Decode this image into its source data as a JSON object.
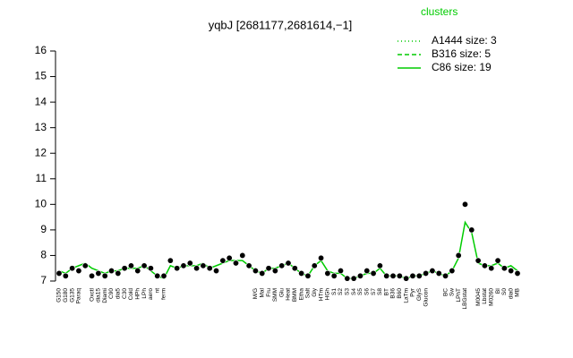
{
  "chart_data": {
    "type": "line",
    "title": "yqbJ [2681177,2681614,−1]",
    "categories": [
      "G150",
      "G180",
      "G135",
      "Paraq",
      null,
      "Oxctl",
      "dia15",
      "Diami",
      "C90",
      "dia5",
      "C30",
      "Cold",
      "HPh",
      "LPh",
      "aero",
      "nt",
      "ferm",
      null,
      null,
      null,
      null,
      null,
      null,
      null,
      null,
      null,
      null,
      null,
      null,
      null,
      "M/G",
      "Mal",
      "Fru",
      "SMM",
      "Glu",
      "Heat",
      "BMM",
      "Etha",
      "Salt",
      "Gly",
      "HTm",
      "HGh",
      "S1",
      "S2",
      "S3",
      "S4",
      "S5",
      "S6",
      "S7",
      "S8",
      "BT",
      "B36",
      "B60",
      "LaTm",
      "Pyr",
      "GlyS",
      "Glucon",
      null,
      null,
      "BC",
      "Sw",
      "LPhT",
      "LBGstat",
      null,
      "M0045",
      "Lbstat",
      "M0260",
      "BI",
      "S0",
      "dia0",
      "MB"
    ],
    "values": [
      7.3,
      7.2,
      7.5,
      7.4,
      7.6,
      7.2,
      7.3,
      7.2,
      7.4,
      7.3,
      7.5,
      7.6,
      7.4,
      7.6,
      7.5,
      7.2,
      7.2,
      7.8,
      7.5,
      7.6,
      7.7,
      7.5,
      7.6,
      7.5,
      7.4,
      7.8,
      7.9,
      7.7,
      8.0,
      7.6,
      7.4,
      7.3,
      7.5,
      7.4,
      7.6,
      7.7,
      7.5,
      7.3,
      7.2,
      7.6,
      7.9,
      7.3,
      7.2,
      7.4,
      7.1,
      7.1,
      7.2,
      7.4,
      7.3,
      7.6,
      7.2,
      7.2,
      7.2,
      7.1,
      7.2,
      7.2,
      7.3,
      7.4,
      7.3,
      7.2,
      7.4,
      8.0,
      10.0,
      9.0,
      7.8,
      7.6,
      7.5,
      7.8,
      7.5,
      7.4,
      7.3
    ],
    "point_color": "#000000",
    "line": {
      "color": "#00cc00",
      "values": [
        7.4,
        7.3,
        7.5,
        7.6,
        7.7,
        7.5,
        7.4,
        7.3,
        7.4,
        7.4,
        7.5,
        7.5,
        7.5,
        7.6,
        7.4,
        7.2,
        7.1,
        7.6,
        7.5,
        7.6,
        7.6,
        7.6,
        7.7,
        7.5,
        7.6,
        7.7,
        7.8,
        7.8,
        7.8,
        7.6,
        7.4,
        7.3,
        7.5,
        7.5,
        7.6,
        7.7,
        7.5,
        7.3,
        7.2,
        7.6,
        7.8,
        7.4,
        7.3,
        7.3,
        7.1,
        7.1,
        7.2,
        7.3,
        7.3,
        7.5,
        7.2,
        7.2,
        7.2,
        7.1,
        7.2,
        7.2,
        7.3,
        7.4,
        7.3,
        7.2,
        7.4,
        7.9,
        9.3,
        8.9,
        7.7,
        7.6,
        7.6,
        7.7,
        7.5,
        7.6,
        7.4
      ]
    },
    "legend": {
      "title": "clusters",
      "color": "#00cc00",
      "entries": [
        {
          "label": "A1444 size: 3",
          "dash": "1,3"
        },
        {
          "label": "B316 size: 5",
          "dash": "5,3"
        },
        {
          "label": "C86 size: 19",
          "dash": "none"
        }
      ]
    },
    "ylim": [
      7,
      16
    ],
    "yticks": [
      7,
      8,
      9,
      10,
      11,
      12,
      13,
      14,
      15,
      16
    ]
  }
}
